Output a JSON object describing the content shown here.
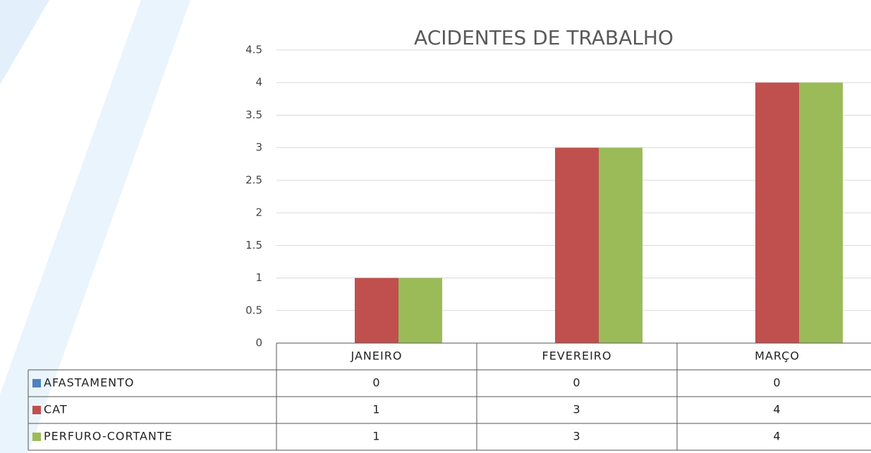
{
  "chart_data": {
    "type": "bar",
    "title": "ACIDENTES DE TRABALHO",
    "categories": [
      "JANEIRO",
      "FEVEREIRO",
      "MARÇO"
    ],
    "series": [
      {
        "name": "AFASTAMENTO",
        "color": "#4f81bd",
        "values": [
          0,
          0,
          0
        ]
      },
      {
        "name": "CAT",
        "color": "#c0504d",
        "values": [
          1,
          3,
          4
        ]
      },
      {
        "name": "PERFURO-CORTANTE",
        "color": "#9bbb59",
        "values": [
          1,
          3,
          4
        ]
      }
    ],
    "ylim": [
      0,
      4.5
    ],
    "yticks": [
      0,
      0.5,
      1,
      1.5,
      2,
      2.5,
      3,
      3.5,
      4,
      4.5
    ],
    "grid": true
  }
}
